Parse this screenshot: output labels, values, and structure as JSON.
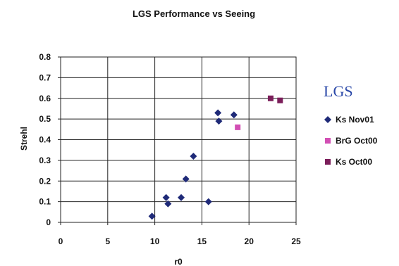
{
  "chart_data": {
    "type": "scatter",
    "title": "LGS Performance vs Seeing",
    "xlabel": "r0",
    "ylabel": "Strehl",
    "xlim": [
      0,
      25
    ],
    "ylim": [
      0,
      0.8
    ],
    "x_ticks": [
      "0",
      "5",
      "10",
      "15",
      "20",
      "25"
    ],
    "y_ticks": [
      "0",
      "0.1",
      "0.2",
      "0.3",
      "0.4",
      "0.5",
      "0.6",
      "0.7",
      "0.8"
    ],
    "grid": true,
    "legend_position": "right",
    "annotation": "LGS",
    "series": [
      {
        "name": "Ks Nov01",
        "marker": "diamond",
        "color": "#1f2a78",
        "points": [
          [
            9.7,
            0.03
          ],
          [
            11.2,
            0.12
          ],
          [
            11.4,
            0.09
          ],
          [
            12.8,
            0.12
          ],
          [
            13.3,
            0.21
          ],
          [
            14.1,
            0.32
          ],
          [
            15.7,
            0.1
          ],
          [
            16.7,
            0.53
          ],
          [
            16.8,
            0.49
          ],
          [
            18.4,
            0.52
          ]
        ]
      },
      {
        "name": "BrG Oct00",
        "marker": "square",
        "color": "#d24fb4",
        "points": [
          [
            18.8,
            0.46
          ]
        ]
      },
      {
        "name": "Ks Oct00",
        "marker": "square",
        "color": "#7b1e5a",
        "points": [
          [
            22.3,
            0.6
          ],
          [
            23.3,
            0.59
          ]
        ]
      }
    ]
  }
}
